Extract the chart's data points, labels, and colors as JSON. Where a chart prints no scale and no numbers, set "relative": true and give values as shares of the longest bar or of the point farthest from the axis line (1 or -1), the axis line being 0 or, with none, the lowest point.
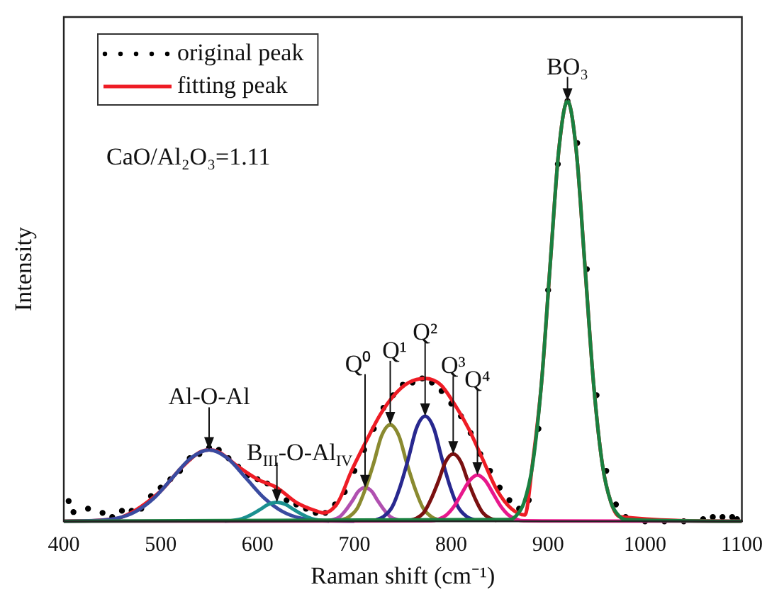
{
  "chart_data": {
    "type": "line",
    "relative": true,
    "xlabel": "Raman shift (cm⁻¹)",
    "ylabel": "Intensity",
    "xlim": [
      400,
      1100
    ],
    "xticks": [
      400,
      500,
      600,
      700,
      800,
      900,
      1000,
      1100
    ],
    "grid": false,
    "legend": "top left",
    "annotations": [
      "CaO/Al₂O₃=1.11",
      {
        "text": "BO₃",
        "x": 920,
        "y": 1
      },
      {
        "text": "Al-O-Al",
        "x": 550,
        "y": 0.17
      },
      {
        "text": "B$_{III}$-O-Al$_{IV}$",
        "x": 620,
        "y": 0.045
      },
      {
        "text": "Q⁰",
        "x": 711,
        "y": 0.08
      },
      {
        "text": "Q¹",
        "x": 737,
        "y": 0.23
      },
      {
        "text": "Q²",
        "x": 773,
        "y": 0.25
      },
      {
        "text": "Q³",
        "x": 802,
        "y": 0.16
      },
      {
        "text": "Q⁴",
        "x": 827,
        "y": 0.11
      }
    ],
    "series": [
      {
        "name": "original peak",
        "type": "scatter",
        "marker": "circle",
        "color": "#000000",
        "x": [
          405,
          410,
          425,
          440,
          450,
          460,
          470,
          480,
          490,
          500,
          510,
          520,
          530,
          540,
          550,
          560,
          570,
          580,
          590,
          600,
          610,
          620,
          630,
          640,
          650,
          660,
          670,
          680,
          690,
          700,
          710,
          720,
          730,
          740,
          750,
          760,
          770,
          780,
          790,
          800,
          810,
          820,
          830,
          840,
          850,
          860,
          870,
          880,
          890,
          900,
          910,
          920,
          930,
          940,
          950,
          960,
          970,
          980,
          1000,
          1020,
          1040,
          1060,
          1070,
          1080,
          1090,
          1095
        ],
        "values": [
          0.048,
          0.022,
          0.03,
          0.02,
          0.01,
          0.025,
          0.025,
          0.03,
          0.06,
          0.08,
          0.1,
          0.12,
          0.15,
          0.16,
          0.175,
          0.17,
          0.15,
          0.13,
          0.11,
          0.1,
          0.09,
          0.075,
          0.05,
          0.04,
          0.03,
          0.02,
          0.02,
          0.04,
          0.07,
          0.12,
          0.17,
          0.22,
          0.27,
          0.3,
          0.325,
          0.33,
          0.34,
          0.33,
          0.31,
          0.28,
          0.25,
          0.21,
          0.16,
          0.12,
          0.08,
          0.05,
          0.03,
          0.05,
          0.22,
          0.55,
          0.85,
          1.0,
          0.9,
          0.6,
          0.3,
          0.12,
          0.04,
          0.01,
          0,
          0,
          0,
          0.005,
          0.01,
          0.01,
          0.01,
          0.005
        ]
      },
      {
        "name": "fitting peak",
        "marker": "none",
        "color": "#ee1c25",
        "x": [
          400,
          440,
          460,
          500,
          520,
          540,
          550,
          560,
          580,
          600,
          620,
          640,
          660,
          668,
          683,
          697,
          712,
          727,
          741,
          756,
          773,
          789,
          803,
          818,
          832,
          847,
          862,
          876,
          884,
          893,
          902,
          911,
          920,
          929,
          938,
          947,
          956,
          965,
          974,
          1100
        ],
        "values": [
          0,
          0.003,
          0.01,
          0.072,
          0.124,
          0.164,
          0.17,
          0.165,
          0.13,
          0.1,
          0.08,
          0.045,
          0.025,
          0.02,
          0.045,
          0.12,
          0.19,
          0.255,
          0.3,
          0.33,
          0.34,
          0.325,
          0.28,
          0.22,
          0.15,
          0.075,
          0.03,
          0.015,
          0.14,
          0.325,
          0.607,
          0.883,
          1,
          0.883,
          0.607,
          0.325,
          0.135,
          0.044,
          0.011,
          0
        ]
      },
      {
        "marker": "none",
        "color": "#3a4ba0",
        "x": [
          400,
          436,
          455,
          474,
          493,
          512,
          531,
          550,
          569,
          588,
          607,
          626,
          645,
          664,
          700
        ],
        "values": [
          0,
          0.002,
          0.007,
          0.023,
          0.055,
          0.103,
          0.15,
          0.17,
          0.15,
          0.103,
          0.055,
          0.023,
          0.007,
          0.002,
          0
        ]
      },
      {
        "marker": "none",
        "color": "#1a9090",
        "x": [
          566,
          575,
          584,
          593,
          602,
          611,
          620,
          629,
          638,
          647,
          656,
          665,
          674
        ],
        "values": [
          0,
          0.002,
          0.006,
          0.015,
          0.027,
          0.04,
          0.045,
          0.04,
          0.027,
          0.015,
          0.006,
          0.002,
          0
        ]
      },
      {
        "marker": "none",
        "color": "#b050b0",
        "x": [
          672,
          678,
          685,
          691,
          698,
          704,
          711,
          718,
          724,
          731,
          737,
          744,
          750
        ],
        "values": [
          0.001,
          0.004,
          0.011,
          0.026,
          0.049,
          0.071,
          0.08,
          0.071,
          0.049,
          0.026,
          0.011,
          0.004,
          0.001
        ]
      },
      {
        "marker": "none",
        "color": "#8a8a30",
        "x": [
          686,
          694,
          703,
          711,
          720,
          728,
          737,
          746,
          754,
          763,
          771,
          780,
          788
        ],
        "values": [
          0.003,
          0.01,
          0.031,
          0.075,
          0.139,
          0.203,
          0.23,
          0.203,
          0.139,
          0.075,
          0.031,
          0.01,
          0.003
        ]
      },
      {
        "marker": "none",
        "color": "#28288f",
        "x": [
          722,
          730,
          739,
          747,
          756,
          764,
          773,
          782,
          790,
          799,
          807,
          816,
          824
        ],
        "values": [
          0.003,
          0.011,
          0.034,
          0.081,
          0.152,
          0.221,
          0.25,
          0.221,
          0.152,
          0.081,
          0.034,
          0.011,
          0.003
        ]
      },
      {
        "marker": "none",
        "color": "#7a1010",
        "x": [
          757,
          764,
          772,
          779,
          787,
          794,
          802,
          810,
          817,
          825,
          832,
          840,
          847
        ],
        "values": [
          0.002,
          0.007,
          0.022,
          0.052,
          0.097,
          0.141,
          0.16,
          0.141,
          0.097,
          0.052,
          0.022,
          0.007,
          0.002
        ]
      },
      {
        "marker": "none",
        "color": "#e8188c",
        "x": [
          400,
          779,
          787,
          795,
          803,
          811,
          819,
          827,
          835,
          843,
          851,
          859,
          867,
          875,
          1100
        ],
        "values": [
          0,
          0.001,
          0.005,
          0.015,
          0.036,
          0.067,
          0.097,
          0.11,
          0.097,
          0.067,
          0.036,
          0.015,
          0.005,
          0.001,
          0
        ]
      },
      {
        "marker": "none",
        "color": "#1a8040",
        "x": [
          400,
          860,
          866,
          875,
          884,
          893,
          902,
          911,
          920,
          929,
          938,
          947,
          956,
          965,
          974,
          980,
          1100
        ],
        "values": [
          0,
          0.004,
          0.011,
          0.044,
          0.135,
          0.325,
          0.607,
          0.883,
          1,
          0.883,
          0.607,
          0.325,
          0.135,
          0.044,
          0.011,
          0.004,
          0
        ]
      }
    ]
  }
}
